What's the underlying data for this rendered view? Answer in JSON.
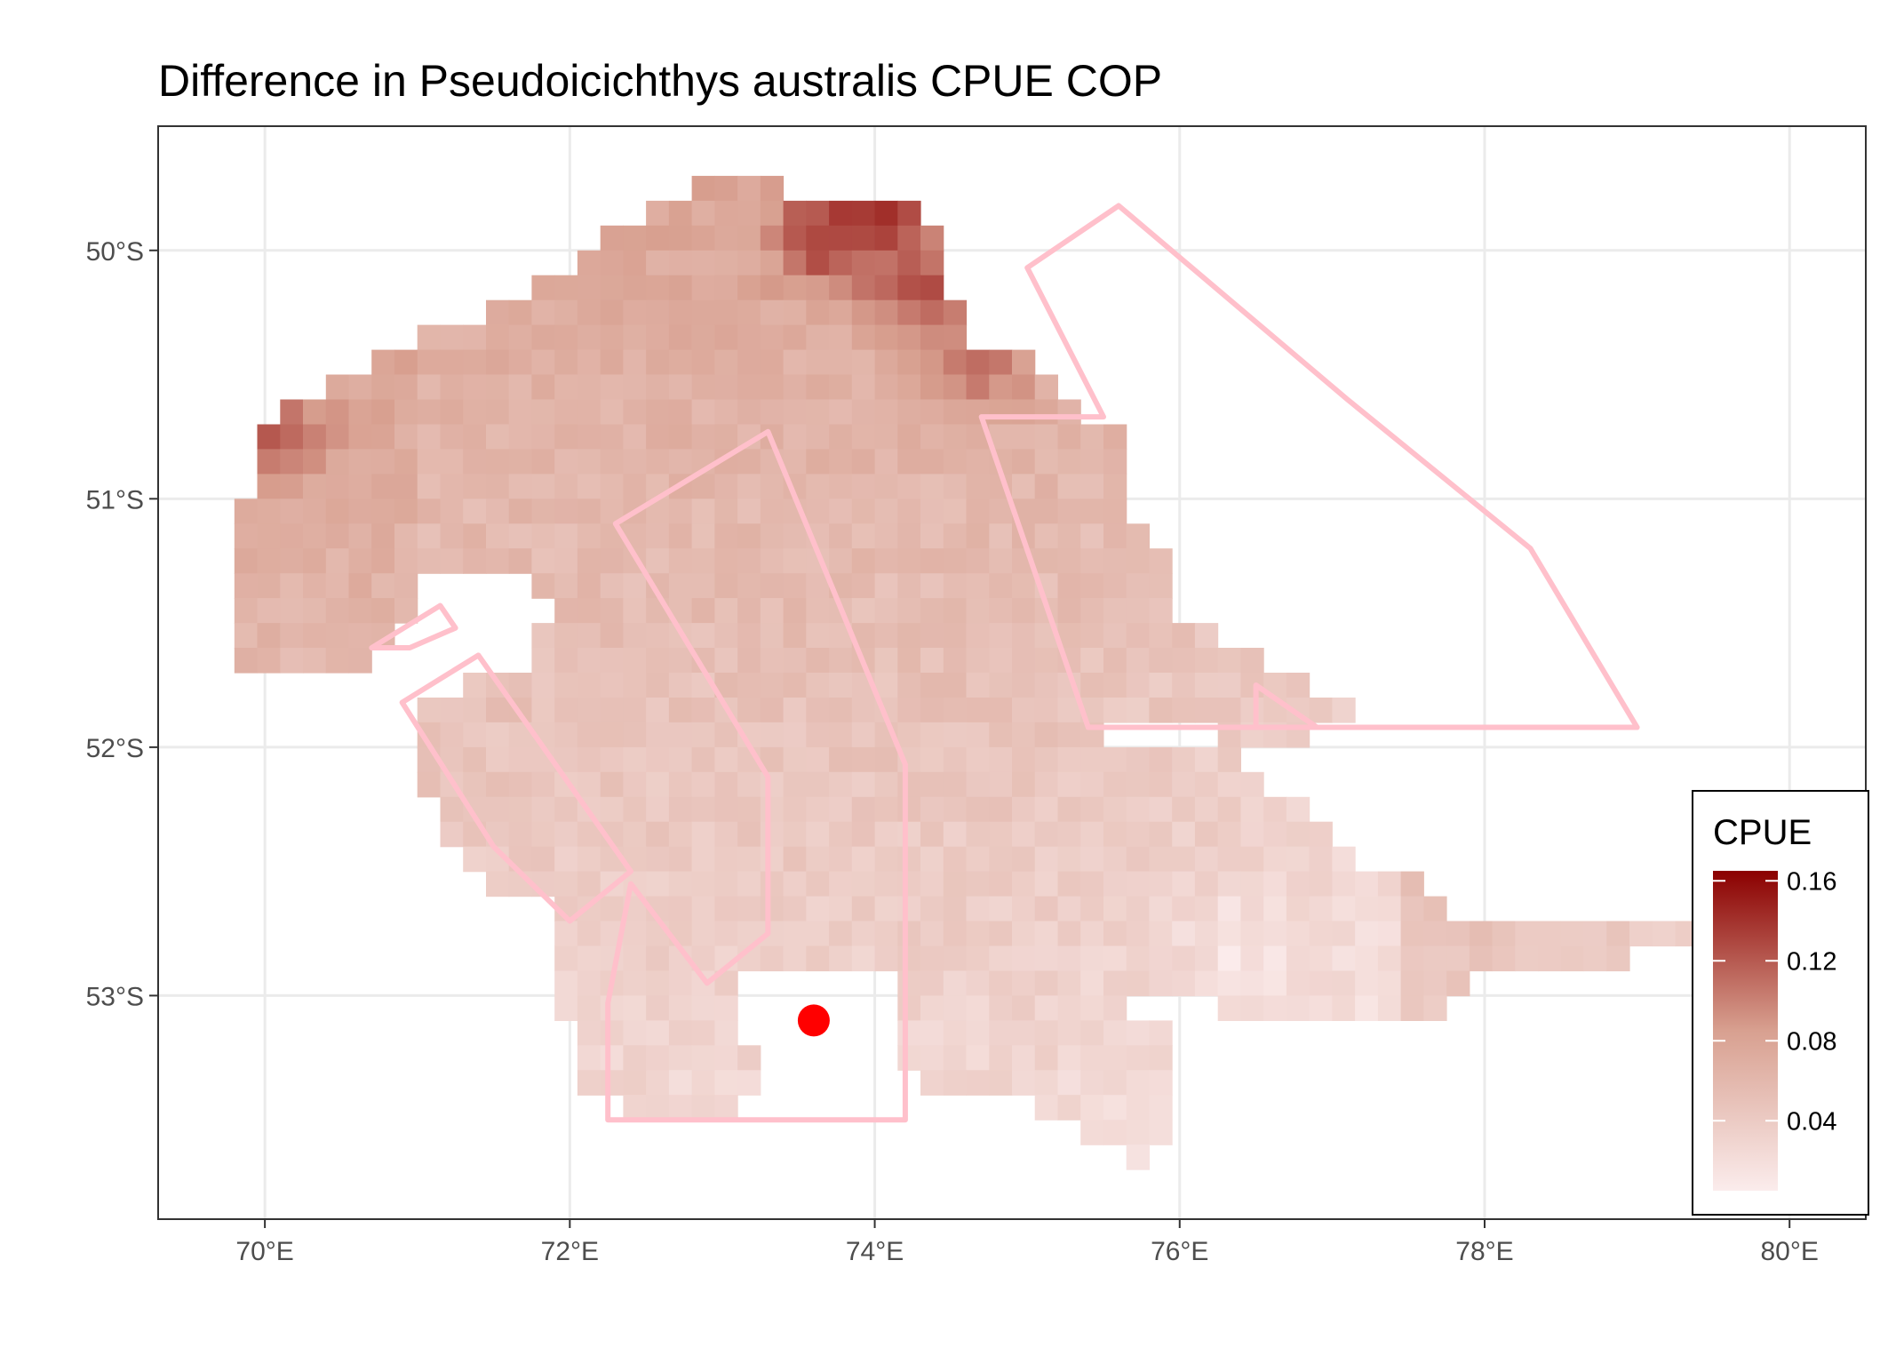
{
  "chart_data": {
    "type": "heatmap",
    "title": "Difference in  Pseudoicichthys australis CPUE COP",
    "x_axis": {
      "unit": "degrees E",
      "range": [
        69.3,
        80.5
      ],
      "ticks": [
        70,
        72,
        74,
        76,
        78,
        80
      ],
      "tick_labels": [
        "70°E",
        "72°E",
        "74°E",
        "76°E",
        "78°E",
        "80°E"
      ]
    },
    "y_axis": {
      "unit": "degrees S",
      "range": [
        49.5,
        53.9
      ],
      "ticks": [
        50,
        51,
        52,
        53
      ],
      "tick_labels": [
        "50°S",
        "51°S",
        "52°S",
        "53°S"
      ]
    },
    "grid": true,
    "colors": {
      "low": "#fbecec",
      "mid": "#d8a090",
      "high": "#8b0000",
      "outline": "#ffc0cb",
      "point": "#ff0000",
      "grid": "#ebebeb"
    },
    "legend": {
      "title": "CPUE",
      "position": "bottom-right",
      "range": [
        0.005,
        0.165
      ],
      "ticks": [
        0.04,
        0.08,
        0.12,
        0.16
      ],
      "tick_labels": [
        "0.04",
        "0.08",
        "0.12",
        "0.16"
      ]
    },
    "raster": {
      "cell_lon": 0.15,
      "cell_lat": 0.1,
      "extent_lon": [
        69.8,
        79.4
      ],
      "extent_lat": [
        49.7,
        53.7
      ],
      "value_range": [
        0.005,
        0.165
      ],
      "hotspots": [
        {
          "lon": 74.0,
          "lat": 49.8,
          "value": 0.165
        },
        {
          "lon": 73.7,
          "lat": 49.95,
          "value": 0.14
        },
        {
          "lon": 74.3,
          "lat": 50.15,
          "value": 0.13
        },
        {
          "lon": 70.05,
          "lat": 50.75,
          "value": 0.13
        },
        {
          "lon": 74.7,
          "lat": 50.45,
          "value": 0.11
        },
        {
          "lon": 73.3,
          "lat": 51.2,
          "value": 0.06
        },
        {
          "lon": 76.4,
          "lat": 52.8,
          "value": 0.01
        }
      ]
    },
    "polygons": [
      {
        "name": "",
        "points": [
          [
            75.6,
            49.82
          ],
          [
            77.1,
            50.6
          ],
          [
            78.3,
            51.2
          ],
          [
            79.0,
            51.92
          ],
          [
            76.5,
            51.92
          ],
          [
            76.5,
            51.75
          ],
          [
            76.9,
            51.92
          ],
          [
            75.4,
            51.92
          ],
          [
            74.7,
            50.67
          ],
          [
            75.5,
            50.67
          ],
          [
            75.0,
            50.07
          ]
        ]
      },
      {
        "name": "",
        "points": [
          [
            72.3,
            51.1
          ],
          [
            73.3,
            50.73
          ],
          [
            74.2,
            52.07
          ],
          [
            74.2,
            53.5
          ],
          [
            72.25,
            53.5
          ],
          [
            72.25,
            53.03
          ],
          [
            72.4,
            52.55
          ],
          [
            72.9,
            52.95
          ],
          [
            73.3,
            52.75
          ],
          [
            73.3,
            52.12
          ]
        ]
      },
      {
        "name": "",
        "points": [
          [
            70.9,
            51.82
          ],
          [
            71.4,
            51.63
          ],
          [
            72.4,
            52.5
          ],
          [
            72.0,
            52.7
          ],
          [
            71.5,
            52.4
          ]
        ]
      },
      {
        "name": "",
        "points": [
          [
            70.7,
            51.6
          ],
          [
            71.15,
            51.43
          ],
          [
            71.25,
            51.52
          ],
          [
            70.95,
            51.6
          ]
        ]
      }
    ],
    "point": {
      "lon": 73.6,
      "lat": 53.1
    }
  }
}
